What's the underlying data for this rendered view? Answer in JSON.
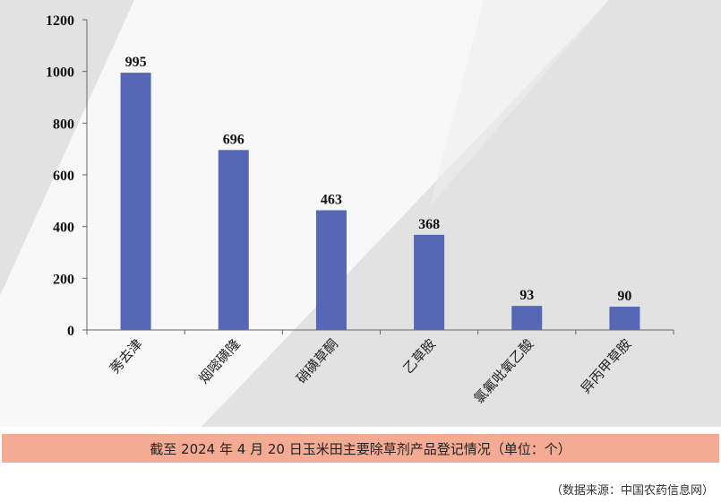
{
  "chart_data": {
    "type": "bar",
    "categories": [
      "莠去津",
      "烟嘧磺隆",
      "硝磺草酮",
      "乙草胺",
      "氯氟吡氧乙酸",
      "异丙甲草胺"
    ],
    "values": [
      995,
      696,
      463,
      368,
      93,
      90
    ],
    "data_labels": [
      "995",
      "696",
      "463",
      "368",
      "93",
      "90"
    ],
    "y_ticks": [
      "0",
      "200",
      "400",
      "600",
      "800",
      "1000",
      "1200"
    ],
    "ylim": [
      0,
      1200
    ],
    "bar_color": "#5567b5",
    "grid": false,
    "legend": "none"
  },
  "caption": "截至 2024 年 4 月 20 日玉米田主要除草剂产品登记情况（单位：个）",
  "source": "（数据来源：中国农药信息网）"
}
